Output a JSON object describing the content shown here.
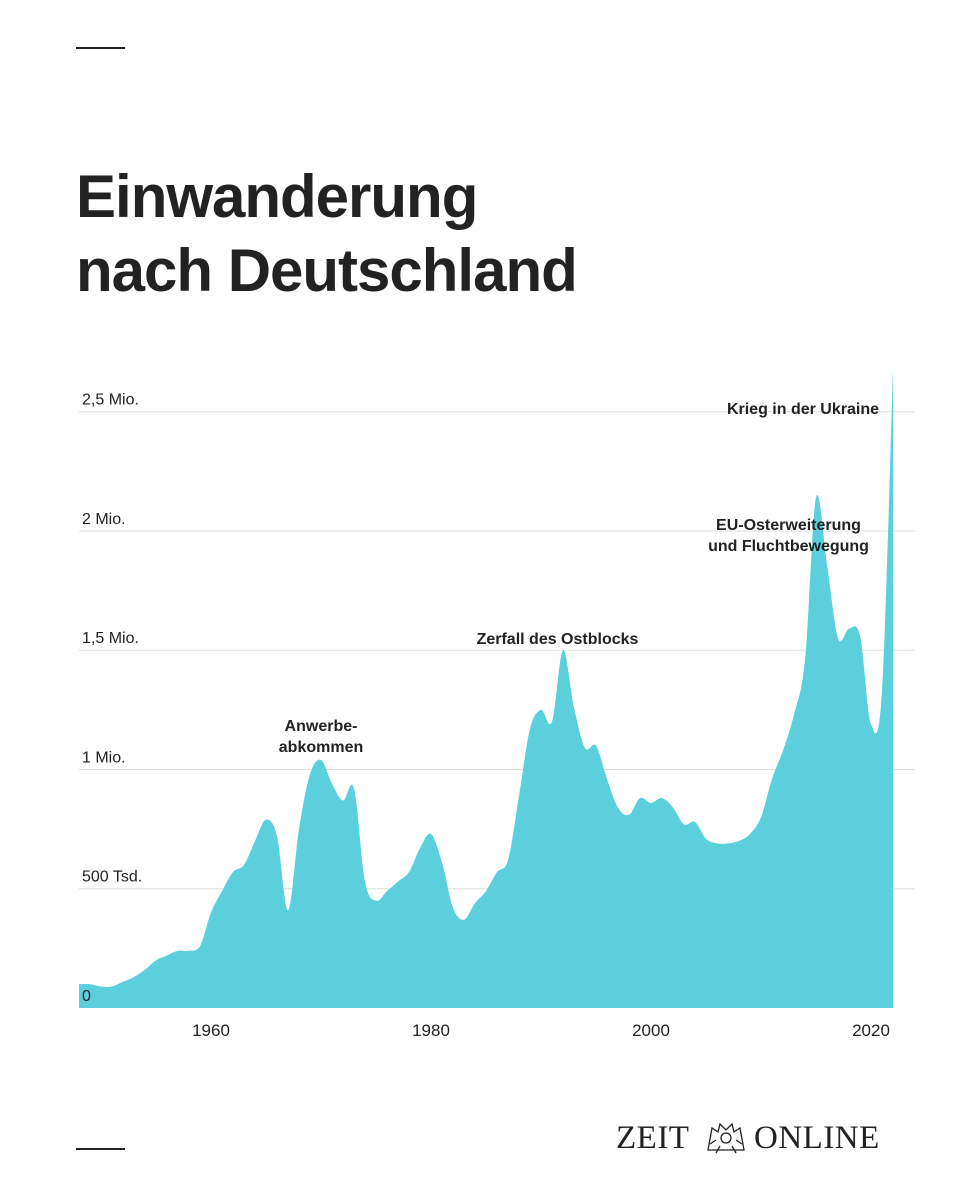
{
  "title": {
    "line1": "Einwanderung",
    "line2": "nach Deutschland"
  },
  "logo": {
    "word1": "ZEIT",
    "word2": "ONLINE",
    "crest_icon": "eagle-crest-icon"
  },
  "colors": {
    "area": "#5ccfdd",
    "grid": "#dddddd",
    "text": "#222222"
  },
  "chart_data": {
    "type": "area",
    "title": "Einwanderung nach Deutschland",
    "xlabel": "",
    "ylabel": "",
    "xlim": [
      1948,
      2022
    ],
    "ylim": [
      0,
      2700000
    ],
    "grid": true,
    "legend": "none",
    "y_ticks": [
      {
        "value": 0,
        "label": "0"
      },
      {
        "value": 500000,
        "label": "500 Tsd."
      },
      {
        "value": 1000000,
        "label": "1 Mio."
      },
      {
        "value": 1500000,
        "label": "1,5 Mio."
      },
      {
        "value": 2000000,
        "label": "2 Mio."
      },
      {
        "value": 2500000,
        "label": "2,5 Mio."
      }
    ],
    "x_ticks": [
      {
        "value": 1960,
        "label": "1960"
      },
      {
        "value": 1980,
        "label": "1980"
      },
      {
        "value": 2000,
        "label": "2000"
      },
      {
        "value": 2020,
        "label": "2020"
      }
    ],
    "series": [
      {
        "x": [
          1948,
          1949,
          1950,
          1951,
          1952,
          1953,
          1954,
          1955,
          1956,
          1957,
          1958,
          1959,
          1960,
          1961,
          1962,
          1963,
          1964,
          1965,
          1966,
          1967,
          1968,
          1969,
          1970,
          1971,
          1972,
          1973,
          1974,
          1975,
          1976,
          1977,
          1978,
          1979,
          1980,
          1981,
          1982,
          1983,
          1984,
          1985,
          1986,
          1987,
          1988,
          1989,
          1990,
          1991,
          1992,
          1993,
          1994,
          1995,
          1996,
          1997,
          1998,
          1999,
          2000,
          2001,
          2002,
          2003,
          2004,
          2005,
          2006,
          2007,
          2008,
          2009,
          2010,
          2011,
          2012,
          2013,
          2014,
          2015,
          2016,
          2017,
          2018,
          2019,
          2020,
          2021,
          2022
        ],
        "values": [
          100000,
          100000,
          90000,
          90000,
          110000,
          130000,
          160000,
          200000,
          220000,
          240000,
          240000,
          260000,
          400000,
          490000,
          570000,
          600000,
          700000,
          790000,
          720000,
          410000,
          750000,
          980000,
          1040000,
          940000,
          870000,
          920000,
          530000,
          450000,
          490000,
          530000,
          570000,
          670000,
          730000,
          610000,
          420000,
          370000,
          440000,
          490000,
          570000,
          620000,
          890000,
          1170000,
          1250000,
          1200000,
          1500000,
          1260000,
          1090000,
          1100000,
          960000,
          840000,
          810000,
          880000,
          860000,
          880000,
          840000,
          770000,
          780000,
          710000,
          690000,
          690000,
          700000,
          730000,
          800000,
          960000,
          1080000,
          1230000,
          1460000,
          2140000,
          1860000,
          1550000,
          1590000,
          1560000,
          1190000,
          1330000,
          2680000
        ]
      }
    ],
    "annotations": [
      {
        "text_lines": [
          "Anwerbe-",
          "abkommen"
        ],
        "x": 1970
      },
      {
        "text_lines": [
          "Zerfall des Ostblocks"
        ],
        "x": 1991.5
      },
      {
        "text_lines": [
          "EU-Osterweiterung",
          "und Fluchtbewegung"
        ],
        "x": 2012.5
      },
      {
        "text_lines": [
          "Krieg in der Ukraine"
        ],
        "x": 2015
      }
    ]
  }
}
